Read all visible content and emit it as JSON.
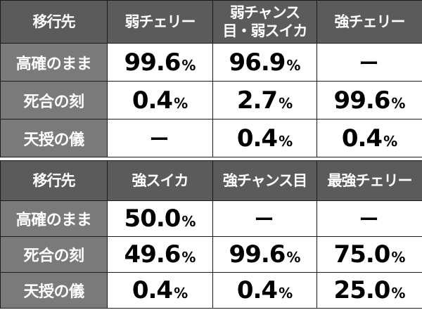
{
  "table1": {
    "headers": [
      "移行先",
      "弱チェリー",
      "弱チャンス目・弱スイカ",
      "強チェリー"
    ],
    "rows": [
      {
        "label": "高確のまま",
        "cells": [
          {
            "v": "99.6",
            "u": "%"
          },
          {
            "v": "96.9",
            "u": "%"
          },
          {
            "v": "ー",
            "u": ""
          }
        ]
      },
      {
        "label": "死合の刻",
        "cells": [
          {
            "v": "0.4",
            "u": "%"
          },
          {
            "v": "2.7",
            "u": "%"
          },
          {
            "v": "99.6",
            "u": "%"
          }
        ]
      },
      {
        "label": "天授の儀",
        "cells": [
          {
            "v": "ー",
            "u": ""
          },
          {
            "v": "0.4",
            "u": "%"
          },
          {
            "v": "0.4",
            "u": "%"
          }
        ]
      }
    ]
  },
  "table2": {
    "headers": [
      "移行先",
      "強スイカ",
      "強チャンス目",
      "最強チェリー"
    ],
    "rows": [
      {
        "label": "高確のまま",
        "cells": [
          {
            "v": "50.0",
            "u": "%"
          },
          {
            "v": "ー",
            "u": ""
          },
          {
            "v": "ー",
            "u": ""
          }
        ]
      },
      {
        "label": "死合の刻",
        "cells": [
          {
            "v": "49.6",
            "u": "%"
          },
          {
            "v": "99.6",
            "u": "%"
          },
          {
            "v": "75.0",
            "u": "%"
          }
        ]
      },
      {
        "label": "天授の儀",
        "cells": [
          {
            "v": "0.4",
            "u": "%"
          },
          {
            "v": "0.4",
            "u": "%"
          },
          {
            "v": "25.0",
            "u": "%"
          }
        ]
      }
    ]
  },
  "colors": {
    "header_bg": "#5b5b5b",
    "label_bg": "#7a7a7a",
    "cell_bg": "#ffffff",
    "border": "#1a1a1a"
  }
}
